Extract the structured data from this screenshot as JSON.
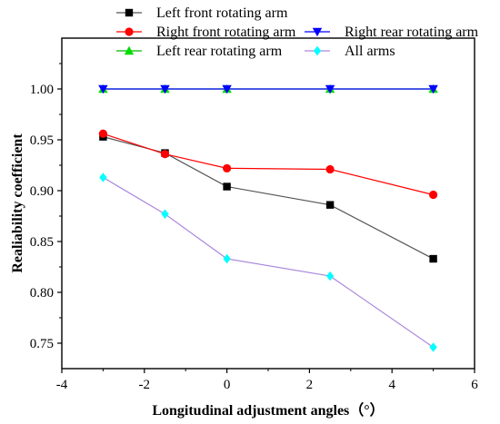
{
  "chart_data": {
    "type": "line",
    "xlabel": "Longitudinal adjustment angles（°）",
    "ylabel": "Realiability coefficient",
    "xlim": [
      -4,
      6
    ],
    "ylim": [
      0.725,
      1.05
    ],
    "x_ticks": [
      "-4",
      "-2",
      "0",
      "2",
      "4",
      "6"
    ],
    "y_ticks": [
      "0.75",
      "0.80",
      "0.85",
      "0.90",
      "0.95",
      "1.00"
    ],
    "grid": false,
    "legend_position": "top",
    "x": [
      -3,
      -1.5,
      0,
      2.5,
      5
    ],
    "series": [
      {
        "name": "Left front rotating arm",
        "values": [
          0.953,
          0.937,
          0.904,
          0.886,
          0.833
        ],
        "color": "#000000",
        "line_color": "#555555",
        "marker": "square"
      },
      {
        "name": "Right front rotating arm",
        "values": [
          0.956,
          0.936,
          0.922,
          0.921,
          0.896
        ],
        "color": "#ff0000",
        "line_color": "#ff0000",
        "marker": "circle"
      },
      {
        "name": "Left rear rotating arm",
        "values": [
          1.0,
          1.0,
          1.0,
          1.0,
          1.0
        ],
        "color": "#00dd00",
        "line_color": "#00bb00",
        "marker": "triangle-up"
      },
      {
        "name": "Right rear rotating arm",
        "values": [
          1.0,
          1.0,
          1.0,
          1.0,
          1.0
        ],
        "color": "#0000ff",
        "line_color": "#0000ff",
        "marker": "triangle-down"
      },
      {
        "name": "All arms",
        "values": [
          0.913,
          0.877,
          0.833,
          0.816,
          0.746
        ],
        "color": "#00ffff",
        "line_color": "#aa88dd",
        "marker": "diamond"
      }
    ]
  }
}
